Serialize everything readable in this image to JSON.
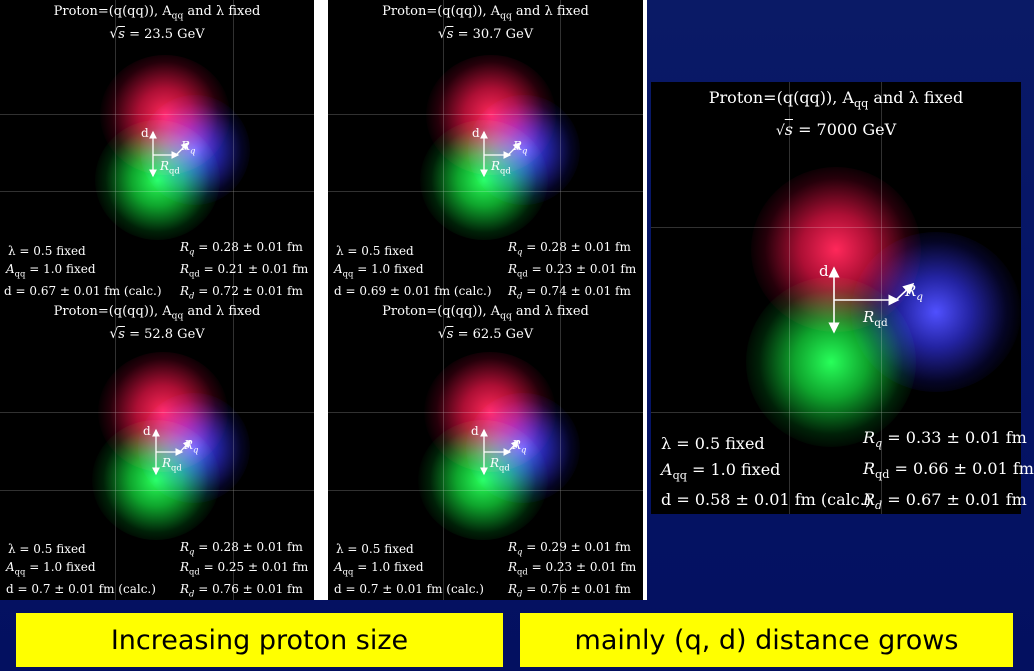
{
  "panels": [
    {
      "title": "Proton=(q(qq)), A",
      "title_sub": "qq",
      "title_tail": " and λ fixed",
      "sqrt_s": "= 23.5 GeV",
      "sqrt_sym": "√",
      "sqrt_var": "s",
      "label_d": "d",
      "label_rq": "R",
      "label_rq_sub": "q",
      "label_rqd": "R",
      "label_rqd_sub": "qd",
      "lambda": "λ   = 0.5 fixed",
      "aqq_sym": "A",
      "aqq_sub": "qq",
      "aqq_val": " = 1.0 fixed",
      "d_val": "d = 0.67 ± 0.01 fm (calc.)",
      "rq_sym": "R",
      "rq_sub": "q",
      "rq_val": " = 0.28 ± 0.01 fm",
      "rqd_sym": "R",
      "rqd_sub": "qd",
      "rqd_val": " = 0.21 ± 0.01 fm",
      "rd_sym": "R",
      "rd_sub": "d",
      "rd_val": " = 0.72 ± 0.01 fm"
    },
    {
      "title": "Proton=(q(qq)), A",
      "title_sub": "qq",
      "title_tail": " and λ fixed",
      "sqrt_s": "= 30.7 GeV",
      "sqrt_sym": "√",
      "sqrt_var": "s",
      "label_d": "d",
      "label_rq": "R",
      "label_rq_sub": "q",
      "label_rqd": "R",
      "label_rqd_sub": "qd",
      "lambda": "λ   = 0.5 fixed",
      "aqq_sym": "A",
      "aqq_sub": "qq",
      "aqq_val": " = 1.0 fixed",
      "d_val": "d = 0.69 ± 0.01 fm (calc.)",
      "rq_sym": "R",
      "rq_sub": "q",
      "rq_val": " = 0.28 ± 0.01 fm",
      "rqd_sym": "R",
      "rqd_sub": "qd",
      "rqd_val": " = 0.23 ± 0.01 fm",
      "rd_sym": "R",
      "rd_sub": "d",
      "rd_val": " = 0.74 ± 0.01 fm"
    },
    {
      "title": "Proton=(q(qq)), A",
      "title_sub": "qq",
      "title_tail": " and λ fixed",
      "sqrt_s": "= 52.8 GeV",
      "sqrt_sym": "√",
      "sqrt_var": "s",
      "label_d": "d",
      "label_rq": "R",
      "label_rq_sub": "q",
      "label_rqd": "R",
      "label_rqd_sub": "qd",
      "lambda": "λ   = 0.5 fixed",
      "aqq_sym": "A",
      "aqq_sub": "qq",
      "aqq_val": " = 1.0 fixed",
      "d_val": "d = 0.7 ± 0.01 fm (calc.)",
      "rq_sym": "R",
      "rq_sub": "q",
      "rq_val": " = 0.28 ± 0.01 fm",
      "rqd_sym": "R",
      "rqd_sub": "qd",
      "rqd_val": " = 0.25 ± 0.01 fm",
      "rd_sym": "R",
      "rd_sub": "d",
      "rd_val": " = 0.76 ± 0.01 fm"
    },
    {
      "title": "Proton=(q(qq)), A",
      "title_sub": "qq",
      "title_tail": " and λ fixed",
      "sqrt_s": "= 62.5 GeV",
      "sqrt_sym": "√",
      "sqrt_var": "s",
      "label_d": "d",
      "label_rq": "R",
      "label_rq_sub": "q",
      "label_rqd": "R",
      "label_rqd_sub": "qd",
      "lambda": "λ   = 0.5 fixed",
      "aqq_sym": "A",
      "aqq_sub": "qq",
      "aqq_val": " = 1.0 fixed",
      "d_val": "d = 0.7 ± 0.01 fm (calc.)",
      "rq_sym": "R",
      "rq_sub": "q",
      "rq_val": " = 0.29 ± 0.01 fm",
      "rqd_sym": "R",
      "rqd_sub": "qd",
      "rqd_val": " = 0.23 ± 0.01 fm",
      "rd_sym": "R",
      "rd_sub": "d",
      "rd_val": " = 0.76 ± 0.01 fm"
    },
    {
      "title": "Proton=(q(qq)), A",
      "title_sub": "qq",
      "title_tail": " and λ fixed",
      "sqrt_s": "= 7000 GeV",
      "sqrt_sym": "√",
      "sqrt_var": "s",
      "label_d": "d",
      "label_rq": "R",
      "label_rq_sub": "q",
      "label_rqd": "R",
      "label_rqd_sub": "qd",
      "lambda": "λ  = 0.5 fixed",
      "aqq_sym": "A",
      "aqq_sub": "qq",
      "aqq_val": " = 1.0 fixed",
      "d_val": "d = 0.58 ± 0.01 fm (calc.)",
      "rq_sym": "R",
      "rq_sub": "q",
      "rq_val": " = 0.33 ± 0.01 fm",
      "rqd_sym": "R",
      "rqd_sub": "qd",
      "rqd_val": " = 0.66 ± 0.01 fm",
      "rd_sym": "R",
      "rd_sub": "d",
      "rd_val": " = 0.67 ± 0.01 fm"
    }
  ],
  "captions": {
    "left": "Increasing proton size",
    "right": "mainly (q, d) distance grows"
  },
  "colors": {
    "background": "#061566",
    "caption_bg": "#ffff00",
    "quark_red": "#ff285a",
    "quark_green": "#28ff5a",
    "quark_blue": "#5050ff"
  }
}
